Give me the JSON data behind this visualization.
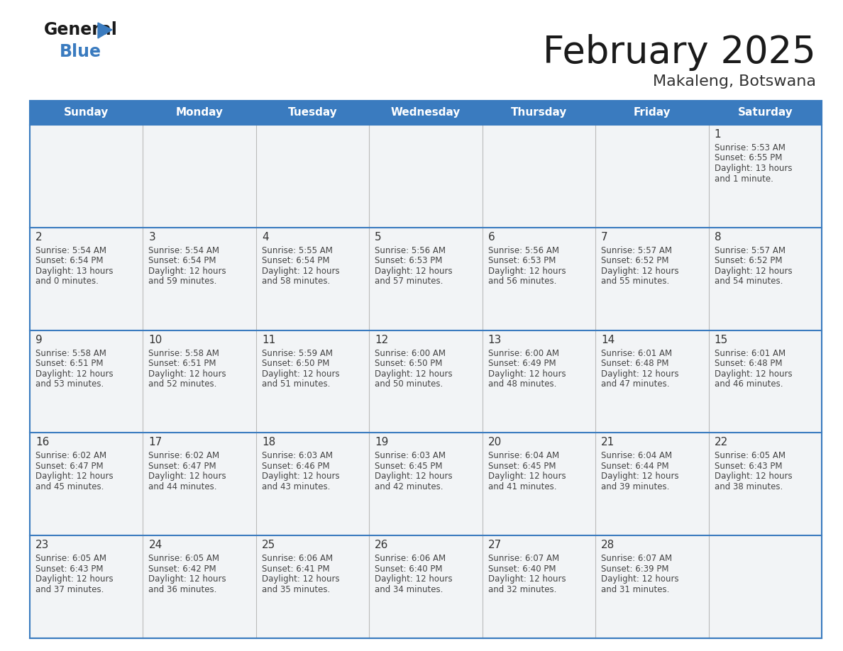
{
  "title": "February 2025",
  "subtitle": "Makaleng, Botswana",
  "header_color": "#3a7bbf",
  "header_text_color": "#ffffff",
  "cell_bg_color": "#f0f4f8",
  "border_color": "#3a7bbf",
  "row_line_color": "#3a7bbf",
  "col_line_color": "#cccccc",
  "day_headers": [
    "Sunday",
    "Monday",
    "Tuesday",
    "Wednesday",
    "Thursday",
    "Friday",
    "Saturday"
  ],
  "title_color": "#1a1a1a",
  "subtitle_color": "#333333",
  "number_color": "#333333",
  "text_color": "#444444",
  "days": [
    {
      "day": 1,
      "col": 6,
      "row": 0,
      "sunrise": "5:53 AM",
      "sunset": "6:55 PM",
      "daylight_h": "13 hours",
      "daylight_m": "and 1 minute."
    },
    {
      "day": 2,
      "col": 0,
      "row": 1,
      "sunrise": "5:54 AM",
      "sunset": "6:54 PM",
      "daylight_h": "13 hours",
      "daylight_m": "and 0 minutes."
    },
    {
      "day": 3,
      "col": 1,
      "row": 1,
      "sunrise": "5:54 AM",
      "sunset": "6:54 PM",
      "daylight_h": "12 hours",
      "daylight_m": "and 59 minutes."
    },
    {
      "day": 4,
      "col": 2,
      "row": 1,
      "sunrise": "5:55 AM",
      "sunset": "6:54 PM",
      "daylight_h": "12 hours",
      "daylight_m": "and 58 minutes."
    },
    {
      "day": 5,
      "col": 3,
      "row": 1,
      "sunrise": "5:56 AM",
      "sunset": "6:53 PM",
      "daylight_h": "12 hours",
      "daylight_m": "and 57 minutes."
    },
    {
      "day": 6,
      "col": 4,
      "row": 1,
      "sunrise": "5:56 AM",
      "sunset": "6:53 PM",
      "daylight_h": "12 hours",
      "daylight_m": "and 56 minutes."
    },
    {
      "day": 7,
      "col": 5,
      "row": 1,
      "sunrise": "5:57 AM",
      "sunset": "6:52 PM",
      "daylight_h": "12 hours",
      "daylight_m": "and 55 minutes."
    },
    {
      "day": 8,
      "col": 6,
      "row": 1,
      "sunrise": "5:57 AM",
      "sunset": "6:52 PM",
      "daylight_h": "12 hours",
      "daylight_m": "and 54 minutes."
    },
    {
      "day": 9,
      "col": 0,
      "row": 2,
      "sunrise": "5:58 AM",
      "sunset": "6:51 PM",
      "daylight_h": "12 hours",
      "daylight_m": "and 53 minutes."
    },
    {
      "day": 10,
      "col": 1,
      "row": 2,
      "sunrise": "5:58 AM",
      "sunset": "6:51 PM",
      "daylight_h": "12 hours",
      "daylight_m": "and 52 minutes."
    },
    {
      "day": 11,
      "col": 2,
      "row": 2,
      "sunrise": "5:59 AM",
      "sunset": "6:50 PM",
      "daylight_h": "12 hours",
      "daylight_m": "and 51 minutes."
    },
    {
      "day": 12,
      "col": 3,
      "row": 2,
      "sunrise": "6:00 AM",
      "sunset": "6:50 PM",
      "daylight_h": "12 hours",
      "daylight_m": "and 50 minutes."
    },
    {
      "day": 13,
      "col": 4,
      "row": 2,
      "sunrise": "6:00 AM",
      "sunset": "6:49 PM",
      "daylight_h": "12 hours",
      "daylight_m": "and 48 minutes."
    },
    {
      "day": 14,
      "col": 5,
      "row": 2,
      "sunrise": "6:01 AM",
      "sunset": "6:48 PM",
      "daylight_h": "12 hours",
      "daylight_m": "and 47 minutes."
    },
    {
      "day": 15,
      "col": 6,
      "row": 2,
      "sunrise": "6:01 AM",
      "sunset": "6:48 PM",
      "daylight_h": "12 hours",
      "daylight_m": "and 46 minutes."
    },
    {
      "day": 16,
      "col": 0,
      "row": 3,
      "sunrise": "6:02 AM",
      "sunset": "6:47 PM",
      "daylight_h": "12 hours",
      "daylight_m": "and 45 minutes."
    },
    {
      "day": 17,
      "col": 1,
      "row": 3,
      "sunrise": "6:02 AM",
      "sunset": "6:47 PM",
      "daylight_h": "12 hours",
      "daylight_m": "and 44 minutes."
    },
    {
      "day": 18,
      "col": 2,
      "row": 3,
      "sunrise": "6:03 AM",
      "sunset": "6:46 PM",
      "daylight_h": "12 hours",
      "daylight_m": "and 43 minutes."
    },
    {
      "day": 19,
      "col": 3,
      "row": 3,
      "sunrise": "6:03 AM",
      "sunset": "6:45 PM",
      "daylight_h": "12 hours",
      "daylight_m": "and 42 minutes."
    },
    {
      "day": 20,
      "col": 4,
      "row": 3,
      "sunrise": "6:04 AM",
      "sunset": "6:45 PM",
      "daylight_h": "12 hours",
      "daylight_m": "and 41 minutes."
    },
    {
      "day": 21,
      "col": 5,
      "row": 3,
      "sunrise": "6:04 AM",
      "sunset": "6:44 PM",
      "daylight_h": "12 hours",
      "daylight_m": "and 39 minutes."
    },
    {
      "day": 22,
      "col": 6,
      "row": 3,
      "sunrise": "6:05 AM",
      "sunset": "6:43 PM",
      "daylight_h": "12 hours",
      "daylight_m": "and 38 minutes."
    },
    {
      "day": 23,
      "col": 0,
      "row": 4,
      "sunrise": "6:05 AM",
      "sunset": "6:43 PM",
      "daylight_h": "12 hours",
      "daylight_m": "and 37 minutes."
    },
    {
      "day": 24,
      "col": 1,
      "row": 4,
      "sunrise": "6:05 AM",
      "sunset": "6:42 PM",
      "daylight_h": "12 hours",
      "daylight_m": "and 36 minutes."
    },
    {
      "day": 25,
      "col": 2,
      "row": 4,
      "sunrise": "6:06 AM",
      "sunset": "6:41 PM",
      "daylight_h": "12 hours",
      "daylight_m": "and 35 minutes."
    },
    {
      "day": 26,
      "col": 3,
      "row": 4,
      "sunrise": "6:06 AM",
      "sunset": "6:40 PM",
      "daylight_h": "12 hours",
      "daylight_m": "and 34 minutes."
    },
    {
      "day": 27,
      "col": 4,
      "row": 4,
      "sunrise": "6:07 AM",
      "sunset": "6:40 PM",
      "daylight_h": "12 hours",
      "daylight_m": "and 32 minutes."
    },
    {
      "day": 28,
      "col": 5,
      "row": 4,
      "sunrise": "6:07 AM",
      "sunset": "6:39 PM",
      "daylight_h": "12 hours",
      "daylight_m": "and 31 minutes."
    }
  ]
}
